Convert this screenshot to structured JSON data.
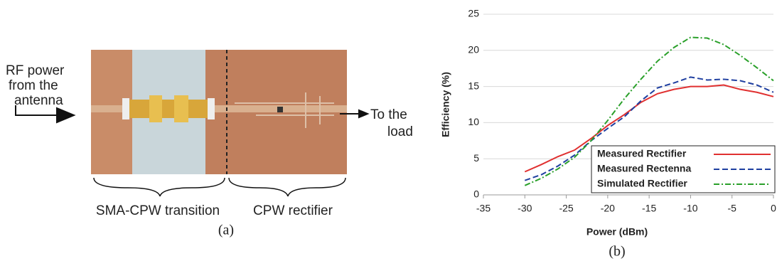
{
  "panel_a": {
    "input_label": [
      "RF power",
      "from  the",
      "antenna"
    ],
    "output_label": [
      "To the",
      "load"
    ],
    "left_section": "SMA-CPW transition",
    "right_section": "CPW rectifier",
    "caption": "(a)"
  },
  "chart_data": {
    "type": "line",
    "caption": "(b)",
    "x_label": "Power (dBm)",
    "y_label": "Efficiency (%)",
    "x": [
      -30,
      -28,
      -26,
      -24,
      -22,
      -20,
      -18,
      -16,
      -14,
      -12,
      -10,
      -8,
      -6,
      -4,
      -2,
      0
    ],
    "series": [
      {
        "name": "Measured Rectifier",
        "color": "#e03030",
        "linestyle": "solid",
        "values": [
          3.2,
          4.2,
          5.3,
          6.2,
          7.8,
          9.6,
          11.1,
          12.8,
          14.0,
          14.6,
          15.0,
          15.0,
          15.2,
          14.6,
          14.2,
          13.6
        ]
      },
      {
        "name": "Measured Rectenna",
        "color": "#1f3fa0",
        "linestyle": "dashed",
        "values": [
          2.0,
          2.8,
          4.0,
          5.5,
          7.5,
          9.2,
          10.8,
          13.0,
          14.8,
          15.5,
          16.3,
          15.9,
          16.0,
          15.8,
          15.2,
          14.2
        ]
      },
      {
        "name": "Simulated Rectifier",
        "color": "#2aa02a",
        "linestyle": "dashdot",
        "values": [
          1.3,
          2.3,
          3.6,
          5.2,
          7.5,
          10.3,
          13.3,
          16.0,
          18.5,
          20.4,
          21.8,
          21.7,
          20.8,
          19.3,
          17.6,
          15.8
        ]
      }
    ],
    "xlim": [
      -35,
      0
    ],
    "xticks": [
      -35,
      -30,
      -25,
      -20,
      -15,
      -10,
      -5,
      0
    ],
    "ylim": [
      0,
      25
    ],
    "yticks": [
      0,
      5,
      10,
      15,
      20,
      25
    ],
    "grid": true,
    "legend": "lower right"
  }
}
